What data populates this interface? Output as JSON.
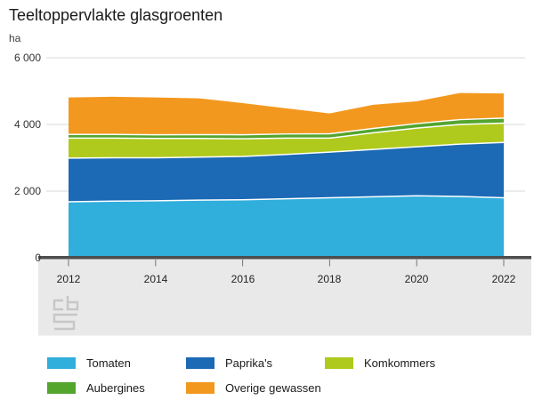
{
  "title": "Teeltoppervlakte glasgroenten",
  "unit_label": "ha",
  "chart_data": {
    "type": "area",
    "stacked": true,
    "title": "Teeltoppervlakte glasgroenten",
    "ylabel": "ha",
    "xlabel": "",
    "ylim": [
      0,
      6000
    ],
    "grid": "horizontal",
    "x": [
      2012,
      2013,
      2014,
      2015,
      2016,
      2017,
      2018,
      2019,
      2020,
      2021,
      2022
    ],
    "series": [
      {
        "name": "Tomaten",
        "color": "#30AEDC",
        "values": [
          1680,
          1700,
          1710,
          1730,
          1740,
          1770,
          1800,
          1830,
          1860,
          1840,
          1800
        ]
      },
      {
        "name": "Paprika's",
        "color": "#1C69B5",
        "values": [
          1310,
          1300,
          1290,
          1290,
          1300,
          1330,
          1370,
          1420,
          1470,
          1570,
          1660
        ]
      },
      {
        "name": "Komkommers",
        "color": "#AFCA1C",
        "values": [
          600,
          590,
          580,
          560,
          530,
          490,
          420,
          500,
          560,
          590,
          580
        ]
      },
      {
        "name": "Aubergines",
        "color": "#54A52E",
        "values": [
          110,
          110,
          110,
          115,
          120,
          125,
          130,
          130,
          135,
          145,
          150
        ]
      },
      {
        "name": "Overige gewassen",
        "color": "#F3981F",
        "values": [
          1110,
          1130,
          1120,
          1090,
          950,
          770,
          610,
          710,
          670,
          800,
          740
        ]
      }
    ],
    "y_tick_values": [
      6000,
      4000,
      2000,
      0
    ],
    "y_tick_labels": [
      "6 000",
      "4 000",
      "2 000",
      "0"
    ],
    "x_tick_years": [
      2012,
      2014,
      2016,
      2018,
      2020,
      2022
    ],
    "x_tick_labels": [
      "2012",
      "2014",
      "2016",
      "2018",
      "2020",
      "2022"
    ]
  },
  "legend": {
    "items": [
      {
        "label": "Tomaten",
        "color": "#30AEDC"
      },
      {
        "label": "Aubergines",
        "color": "#54A52E"
      },
      {
        "label": "Paprika's",
        "color": "#1C69B5"
      },
      {
        "label": "Overige gewassen",
        "color": "#F3981F"
      },
      {
        "label": "Komkommers",
        "color": "#AFCA1C"
      }
    ]
  },
  "logo_name": "cbs"
}
